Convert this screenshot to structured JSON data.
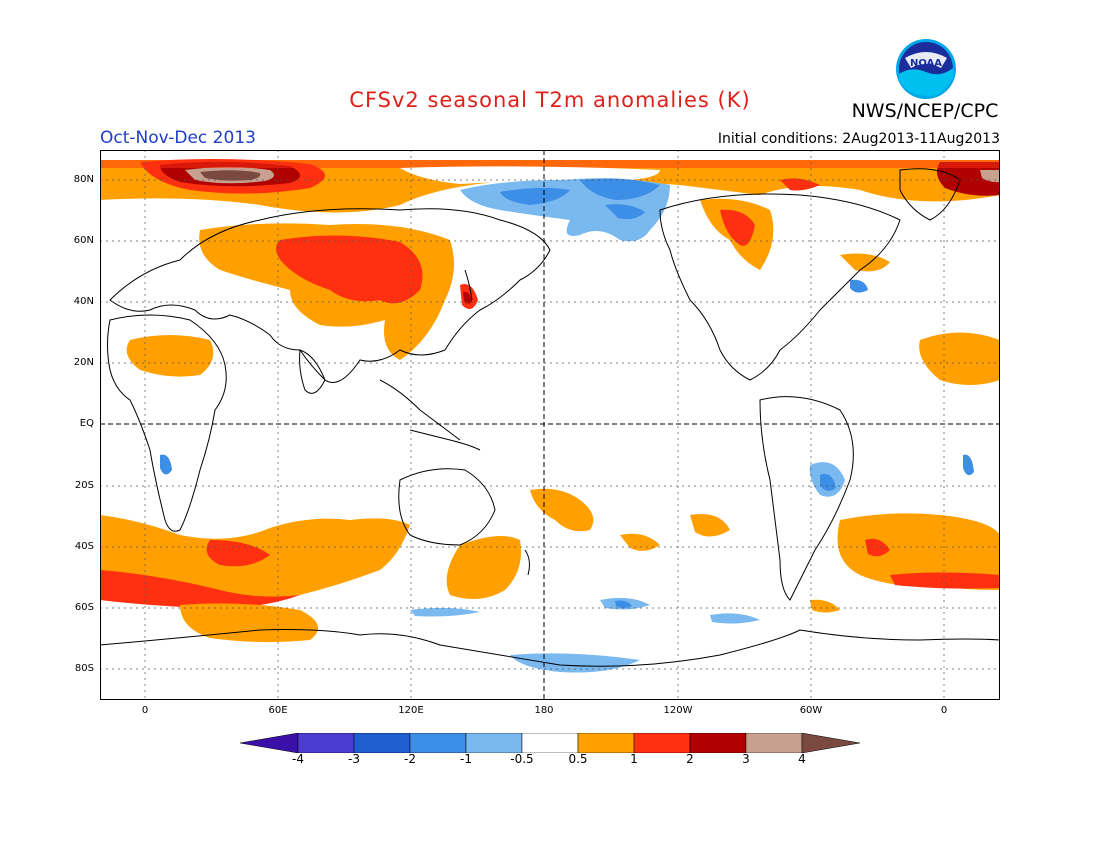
{
  "header": {
    "title": "CFSv2 seasonal T2m anomalies (K)",
    "organization": "NWS/NCEP/CPC",
    "season": "Oct-Nov-Dec 2013",
    "initial_conditions": "Initial conditions: 2Aug2013-11Aug2013",
    "logo_text": "NOAA"
  },
  "axes": {
    "y_labels": [
      "80N",
      "60N",
      "40N",
      "20N",
      "EQ",
      "20S",
      "40S",
      "60S",
      "80S"
    ],
    "x_labels": [
      "0",
      "60E",
      "120E",
      "180",
      "120W",
      "60W",
      "0"
    ]
  },
  "colorbar": {
    "labels": [
      "-4",
      "-3",
      "-2",
      "-1",
      "-0.5",
      "0.5",
      "1",
      "2",
      "3",
      "4"
    ],
    "colors": [
      "#3a10a8",
      "#4a3cd0",
      "#1f5fd0",
      "#3d8ee6",
      "#7ab8f0",
      "#ffffff",
      "#ffa000",
      "#ff3010",
      "#b00000",
      "#c8a090",
      "#7a4a40"
    ]
  },
  "colors": {
    "title": "#e0201a",
    "season": "#1e3cc8"
  }
}
